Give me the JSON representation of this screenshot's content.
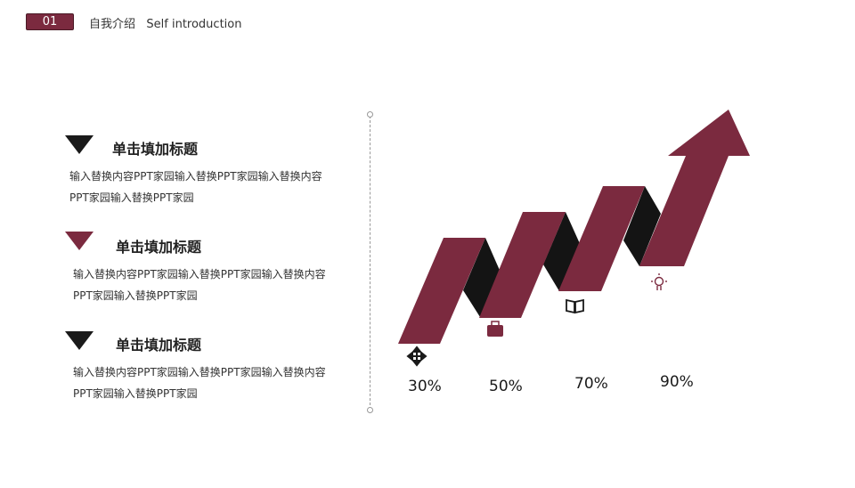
{
  "header": {
    "number": "01",
    "title": "自我介绍   Self introduction"
  },
  "items": [
    {
      "title": "单击填加标题",
      "body": "输入替换内容PPT家园输入替换PPT家园输入替换内容PPT家园输入替换PPT家园",
      "marker_color": "#1a1a1a"
    },
    {
      "title": "单击填加标题",
      "body": "输入替换内容PPT家园输入替换PPT家园输入替换内容PPT家园输入替换PPT家园",
      "marker_color": "#7b2a3f"
    },
    {
      "title": "单击填加标题",
      "body": "输入替换内容PPT家园输入替换PPT家园输入替换内容PPT家园输入替换PPT家园",
      "marker_color": "#1a1a1a"
    }
  ],
  "steps": [
    {
      "value": "30%",
      "icon": "move-arrows-icon"
    },
    {
      "value": "50%",
      "icon": "briefcase-icon"
    },
    {
      "value": "70%",
      "icon": "open-book-icon"
    },
    {
      "value": "90%",
      "icon": "lightbulb-icon"
    }
  ],
  "colors": {
    "accent": "#7b2a3f",
    "fold": "#141414"
  }
}
